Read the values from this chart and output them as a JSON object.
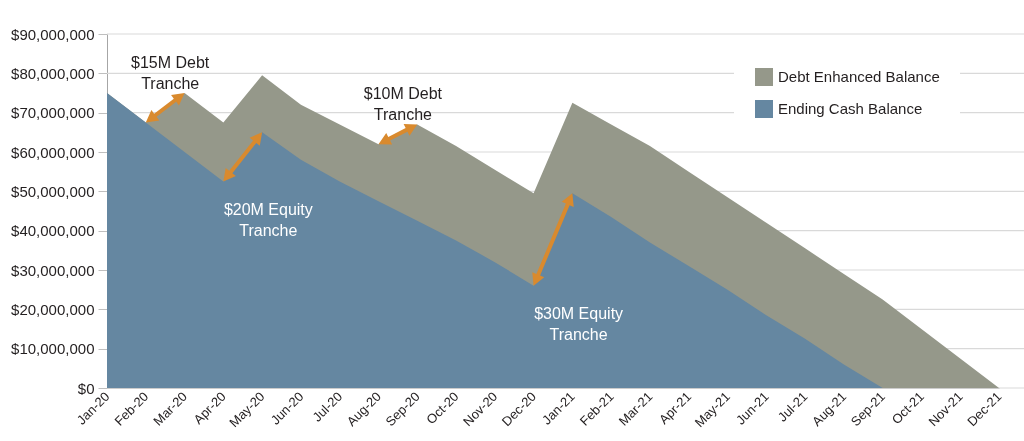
{
  "chart_data": {
    "type": "area",
    "categories": [
      "Jan-20",
      "Feb-20",
      "Mar-20",
      "Apr-20",
      "May-20",
      "Jun-20",
      "Jul-20",
      "Aug-20",
      "Sep-20",
      "Oct-20",
      "Nov-20",
      "Dec-20",
      "Jan-21",
      "Feb-21",
      "Mar-21",
      "Apr-21",
      "May-21",
      "Jun-21",
      "Jul-21",
      "Aug-21",
      "Sep-21",
      "Oct-21",
      "Nov-21",
      "Dec-21"
    ],
    "series": [
      {
        "name": "Debt Enhanced Balance",
        "color": "#95988a",
        "values": [
          75000000,
          67500000,
          75000000,
          67500000,
          79500000,
          72000000,
          67000000,
          62000000,
          67000000,
          61500000,
          55500000,
          49500000,
          72500000,
          67000000,
          61500000,
          55000000,
          48500000,
          42000000,
          35500000,
          29000000,
          22500000,
          15000000,
          7500000,
          0
        ]
      },
      {
        "name": "Ending Cash Balance",
        "color": "#6587a1",
        "values": [
          75000000,
          67500000,
          60000000,
          52500000,
          65000000,
          58000000,
          52500000,
          47500000,
          42500000,
          37500000,
          32000000,
          26000000,
          49500000,
          43500000,
          37000000,
          31000000,
          25000000,
          18500000,
          12500000,
          6000000,
          0,
          null,
          null,
          null
        ]
      }
    ],
    "ylim": [
      0,
      90000000
    ],
    "yticks": [
      {
        "value": 0,
        "label": "$0"
      },
      {
        "value": 10000000,
        "label": "$10,000,000"
      },
      {
        "value": 20000000,
        "label": "$20,000,000"
      },
      {
        "value": 30000000,
        "label": "$30,000,000"
      },
      {
        "value": 40000000,
        "label": "$40,000,000"
      },
      {
        "value": 50000000,
        "label": "$50,000,000"
      },
      {
        "value": 60000000,
        "label": "$60,000,000"
      },
      {
        "value": 70000000,
        "label": "$70,000,000"
      },
      {
        "value": 80000000,
        "label": "$80,000,000"
      },
      {
        "value": 90000000,
        "label": "$90,000,000"
      }
    ],
    "grid": "y",
    "legend": "top right",
    "annotations": [
      {
        "text": "$15M Debt\nTranche",
        "x": "Mar-20",
        "y": 75000000
      },
      {
        "text": "$20M Equity\nTranche",
        "x": "Apr-20",
        "y": 52500000
      },
      {
        "text": "$10M Debt\nTranche",
        "x": "Sep-20",
        "y": 67000000
      },
      {
        "text": "$30M Equity\nTranche",
        "x": "Dec-20",
        "y": 26000000
      }
    ]
  }
}
